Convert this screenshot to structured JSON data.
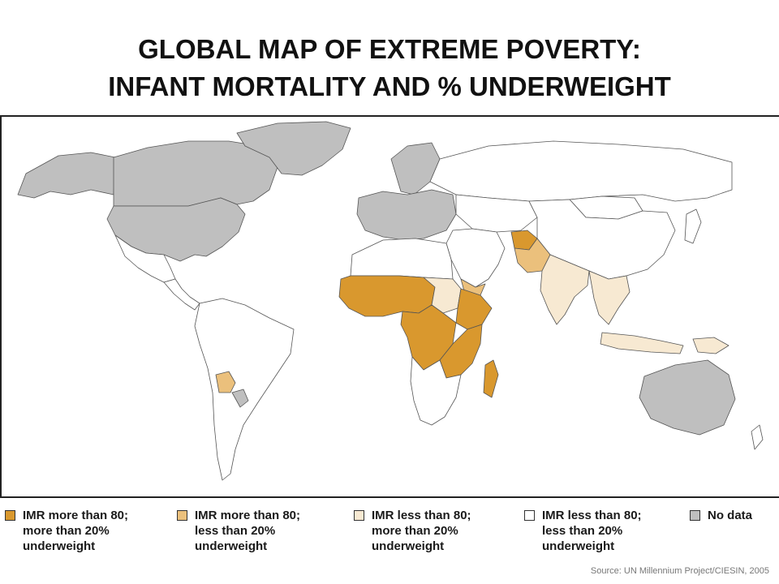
{
  "title": {
    "line1": "GLOBAL MAP OF EXTREME POVERTY:",
    "line2": "INFANT MORTALITY AND % UNDERWEIGHT"
  },
  "colors": {
    "imr_high_uw_high": "#d9982e",
    "imr_high_uw_low": "#ebc07c",
    "imr_low_uw_high": "#f7e9d2",
    "imr_low_uw_low": "#ffffff",
    "no_data": "#bfbfbf",
    "border": "#555555",
    "ocean": "#ffffff"
  },
  "legend": [
    {
      "id": "imr_high_uw_high",
      "label": "IMR more than 80;\nmore than 20%\nunderweight"
    },
    {
      "id": "imr_high_uw_low",
      "label": "IMR more than 80;\nless than 20%\nunderweight"
    },
    {
      "id": "imr_low_uw_high",
      "label": "IMR less than 80;\nmore than 20%\nunderweight"
    },
    {
      "id": "imr_low_uw_low",
      "label": "IMR less than 80;\nless than 20%\nunderweight"
    },
    {
      "id": "no_data",
      "label": "No data"
    }
  ],
  "source": "Source: UN Millennium Project/CIESIN, 2005",
  "regions": {
    "canada": "no_data",
    "usa": "no_data",
    "greenland": "no_data",
    "alaska": "no_data",
    "mexico": "imr_low_uw_low",
    "central_america": "imr_low_uw_low",
    "south_america": "imr_low_uw_low",
    "bolivia": "imr_high_uw_low",
    "paraguay": "no_data",
    "europe": "no_data",
    "scandinavia": "no_data",
    "russia": "imr_low_uw_low",
    "north_africa": "imr_low_uw_low",
    "sahel_west_africa": "imr_high_uw_high",
    "sudan": "imr_low_uw_high",
    "ethiopia": "imr_high_uw_high",
    "central_africa": "imr_high_uw_high",
    "east_africa": "imr_high_uw_high",
    "southern_africa": "imr_low_uw_low",
    "madagascar": "imr_high_uw_high",
    "middle_east": "imr_low_uw_low",
    "yemen": "imr_high_uw_low",
    "afghanistan": "imr_high_uw_high",
    "pakistan": "imr_high_uw_low",
    "india": "imr_low_uw_high",
    "central_asia": "imr_low_uw_low",
    "china": "imr_low_uw_low",
    "mongolia": "imr_low_uw_low",
    "southeast_asia": "imr_low_uw_high",
    "indonesia": "imr_low_uw_high",
    "japan": "imr_low_uw_low",
    "australia": "no_data",
    "new_zealand": "imr_low_uw_low",
    "new_guinea": "imr_low_uw_high"
  }
}
